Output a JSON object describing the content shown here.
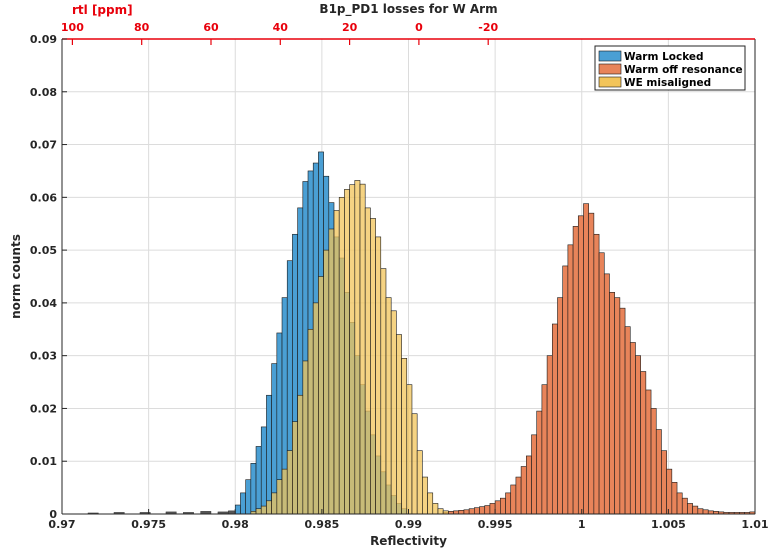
{
  "chart_data": {
    "type": "bar",
    "title": "B1p_PD1 losses for W Arm",
    "xlabel": "Reflectivity",
    "ylabel": "norm counts",
    "top_axis_label": "rtl [ppm]",
    "xlim": [
      0.97,
      1.01
    ],
    "ylim": [
      0,
      0.09
    ],
    "xticks": [
      0.97,
      0.975,
      0.98,
      0.985,
      0.99,
      0.995,
      1,
      1.005,
      1.01
    ],
    "xtick_labels": [
      "0.97",
      "0.975",
      "0.98",
      "0.985",
      "0.99",
      "0.995",
      "1",
      "1.005",
      "1.01"
    ],
    "yticks": [
      0,
      0.01,
      0.02,
      0.03,
      0.04,
      0.05,
      0.06,
      0.07,
      0.08,
      0.09
    ],
    "ytick_labels": [
      "0",
      "0.01",
      "0.02",
      "0.03",
      "0.04",
      "0.05",
      "0.06",
      "0.07",
      "0.08",
      "0.09"
    ],
    "top_ticks": [
      0.97,
      0.98,
      0.99,
      1.0,
      1.01
    ],
    "top_tick_labels": [
      "100",
      "80",
      "60",
      "40",
      "20",
      "0",
      "-20"
    ],
    "top_tick_positions": [
      0.9706,
      0.9746,
      0.9786,
      0.9826,
      0.9866,
      0.9906,
      0.9946
    ],
    "grid": true,
    "legend_position": "top-right",
    "bin_width": 0.0003,
    "series": [
      {
        "name": "Warm Locked",
        "color": "#4a9fd4",
        "bins": [
          [
            0.98,
            0.0017
          ],
          [
            0.9803,
            0.004
          ],
          [
            0.9806,
            0.0065
          ],
          [
            0.9809,
            0.0096
          ],
          [
            0.9812,
            0.0128
          ],
          [
            0.9815,
            0.0165
          ],
          [
            0.9818,
            0.0225
          ],
          [
            0.9821,
            0.0285
          ],
          [
            0.9824,
            0.0343
          ],
          [
            0.9827,
            0.041
          ],
          [
            0.983,
            0.048
          ],
          [
            0.9833,
            0.053
          ],
          [
            0.9836,
            0.058
          ],
          [
            0.9839,
            0.063
          ],
          [
            0.9842,
            0.065
          ],
          [
            0.9845,
            0.0665
          ],
          [
            0.9848,
            0.0686
          ],
          [
            0.9851,
            0.064
          ],
          [
            0.9854,
            0.059
          ],
          [
            0.9857,
            0.0525
          ],
          [
            0.986,
            0.0485
          ],
          [
            0.9863,
            0.042
          ],
          [
            0.9866,
            0.0363
          ],
          [
            0.9869,
            0.03
          ],
          [
            0.9872,
            0.0245
          ],
          [
            0.9875,
            0.0195
          ],
          [
            0.9878,
            0.015
          ],
          [
            0.9881,
            0.011
          ],
          [
            0.9884,
            0.008
          ],
          [
            0.9887,
            0.0055
          ],
          [
            0.989,
            0.0035
          ],
          [
            0.9893,
            0.002
          ],
          [
            0.9896,
            0.001
          ]
        ]
      },
      {
        "name": "Warm off resonance",
        "color": "#e8845a",
        "bins": [
          [
            0.992,
            0.0003
          ],
          [
            0.9923,
            0.0005
          ],
          [
            0.9926,
            0.0006
          ],
          [
            0.9929,
            0.0007
          ],
          [
            0.9932,
            0.0008
          ],
          [
            0.9935,
            0.001
          ],
          [
            0.9938,
            0.0012
          ],
          [
            0.9941,
            0.0014
          ],
          [
            0.9944,
            0.0016
          ],
          [
            0.9947,
            0.002
          ],
          [
            0.995,
            0.0025
          ],
          [
            0.9953,
            0.003
          ],
          [
            0.9956,
            0.004
          ],
          [
            0.9959,
            0.0055
          ],
          [
            0.9962,
            0.007
          ],
          [
            0.9965,
            0.009
          ],
          [
            0.9968,
            0.011
          ],
          [
            0.9971,
            0.015
          ],
          [
            0.9974,
            0.0195
          ],
          [
            0.9977,
            0.0245
          ],
          [
            0.998,
            0.03
          ],
          [
            0.9983,
            0.036
          ],
          [
            0.9986,
            0.041
          ],
          [
            0.9989,
            0.047
          ],
          [
            0.9992,
            0.051
          ],
          [
            0.9995,
            0.0545
          ],
          [
            0.9998,
            0.0565
          ],
          [
            1.0001,
            0.0588
          ],
          [
            1.0004,
            0.057
          ],
          [
            1.0007,
            0.053
          ],
          [
            1.001,
            0.0495
          ],
          [
            1.0013,
            0.0455
          ],
          [
            1.0016,
            0.042
          ],
          [
            1.0019,
            0.041
          ],
          [
            1.0022,
            0.039
          ],
          [
            1.0025,
            0.0355
          ],
          [
            1.0028,
            0.0325
          ],
          [
            1.0031,
            0.03
          ],
          [
            1.0034,
            0.027
          ],
          [
            1.0037,
            0.0235
          ],
          [
            1.004,
            0.02
          ],
          [
            1.0043,
            0.016
          ],
          [
            1.0046,
            0.012
          ],
          [
            1.0049,
            0.0085
          ],
          [
            1.0052,
            0.006
          ],
          [
            1.0055,
            0.004
          ],
          [
            1.0058,
            0.003
          ],
          [
            1.0061,
            0.002
          ],
          [
            1.0064,
            0.0015
          ],
          [
            1.0067,
            0.001
          ],
          [
            1.007,
            0.0008
          ],
          [
            1.0073,
            0.0006
          ],
          [
            1.0076,
            0.0005
          ],
          [
            1.0079,
            0.0004
          ],
          [
            1.0082,
            0.0003
          ],
          [
            1.0085,
            0.0003
          ],
          [
            1.0088,
            0.0003
          ],
          [
            1.0091,
            0.0003
          ],
          [
            1.0094,
            0.0003
          ],
          [
            1.0097,
            0.0004
          ]
        ]
      },
      {
        "name": "WE misaligned",
        "color": "#f2c45a",
        "bins": [
          [
            0.9809,
            0.0005
          ],
          [
            0.9812,
            0.001
          ],
          [
            0.9815,
            0.0015
          ],
          [
            0.9818,
            0.0025
          ],
          [
            0.9821,
            0.004
          ],
          [
            0.9824,
            0.0065
          ],
          [
            0.9827,
            0.0085
          ],
          [
            0.983,
            0.012
          ],
          [
            0.9833,
            0.0175
          ],
          [
            0.9836,
            0.0225
          ],
          [
            0.9839,
            0.029
          ],
          [
            0.9842,
            0.035
          ],
          [
            0.9845,
            0.04
          ],
          [
            0.9848,
            0.045
          ],
          [
            0.9851,
            0.05
          ],
          [
            0.9854,
            0.054
          ],
          [
            0.9857,
            0.0575
          ],
          [
            0.986,
            0.06
          ],
          [
            0.9863,
            0.0615
          ],
          [
            0.9866,
            0.0624
          ],
          [
            0.9869,
            0.0632
          ],
          [
            0.9872,
            0.0625
          ],
          [
            0.9875,
            0.058
          ],
          [
            0.9878,
            0.056
          ],
          [
            0.9881,
            0.0525
          ],
          [
            0.9884,
            0.0465
          ],
          [
            0.9887,
            0.041
          ],
          [
            0.989,
            0.0385
          ],
          [
            0.9893,
            0.034
          ],
          [
            0.9896,
            0.0295
          ],
          [
            0.9899,
            0.0245
          ],
          [
            0.9902,
            0.019
          ],
          [
            0.9905,
            0.012
          ],
          [
            0.9908,
            0.007
          ],
          [
            0.9911,
            0.004
          ],
          [
            0.9914,
            0.002
          ],
          [
            0.9917,
            0.001
          ],
          [
            0.992,
            0.0006
          ]
        ]
      }
    ],
    "noise_floor": [
      [
        0.9715,
        0.0002
      ],
      [
        0.973,
        0.0003
      ],
      [
        0.9745,
        0.0003
      ],
      [
        0.976,
        0.0004
      ],
      [
        0.977,
        0.0003
      ],
      [
        0.978,
        0.0005
      ],
      [
        0.979,
        0.0004
      ],
      [
        0.9796,
        0.0006
      ]
    ]
  }
}
